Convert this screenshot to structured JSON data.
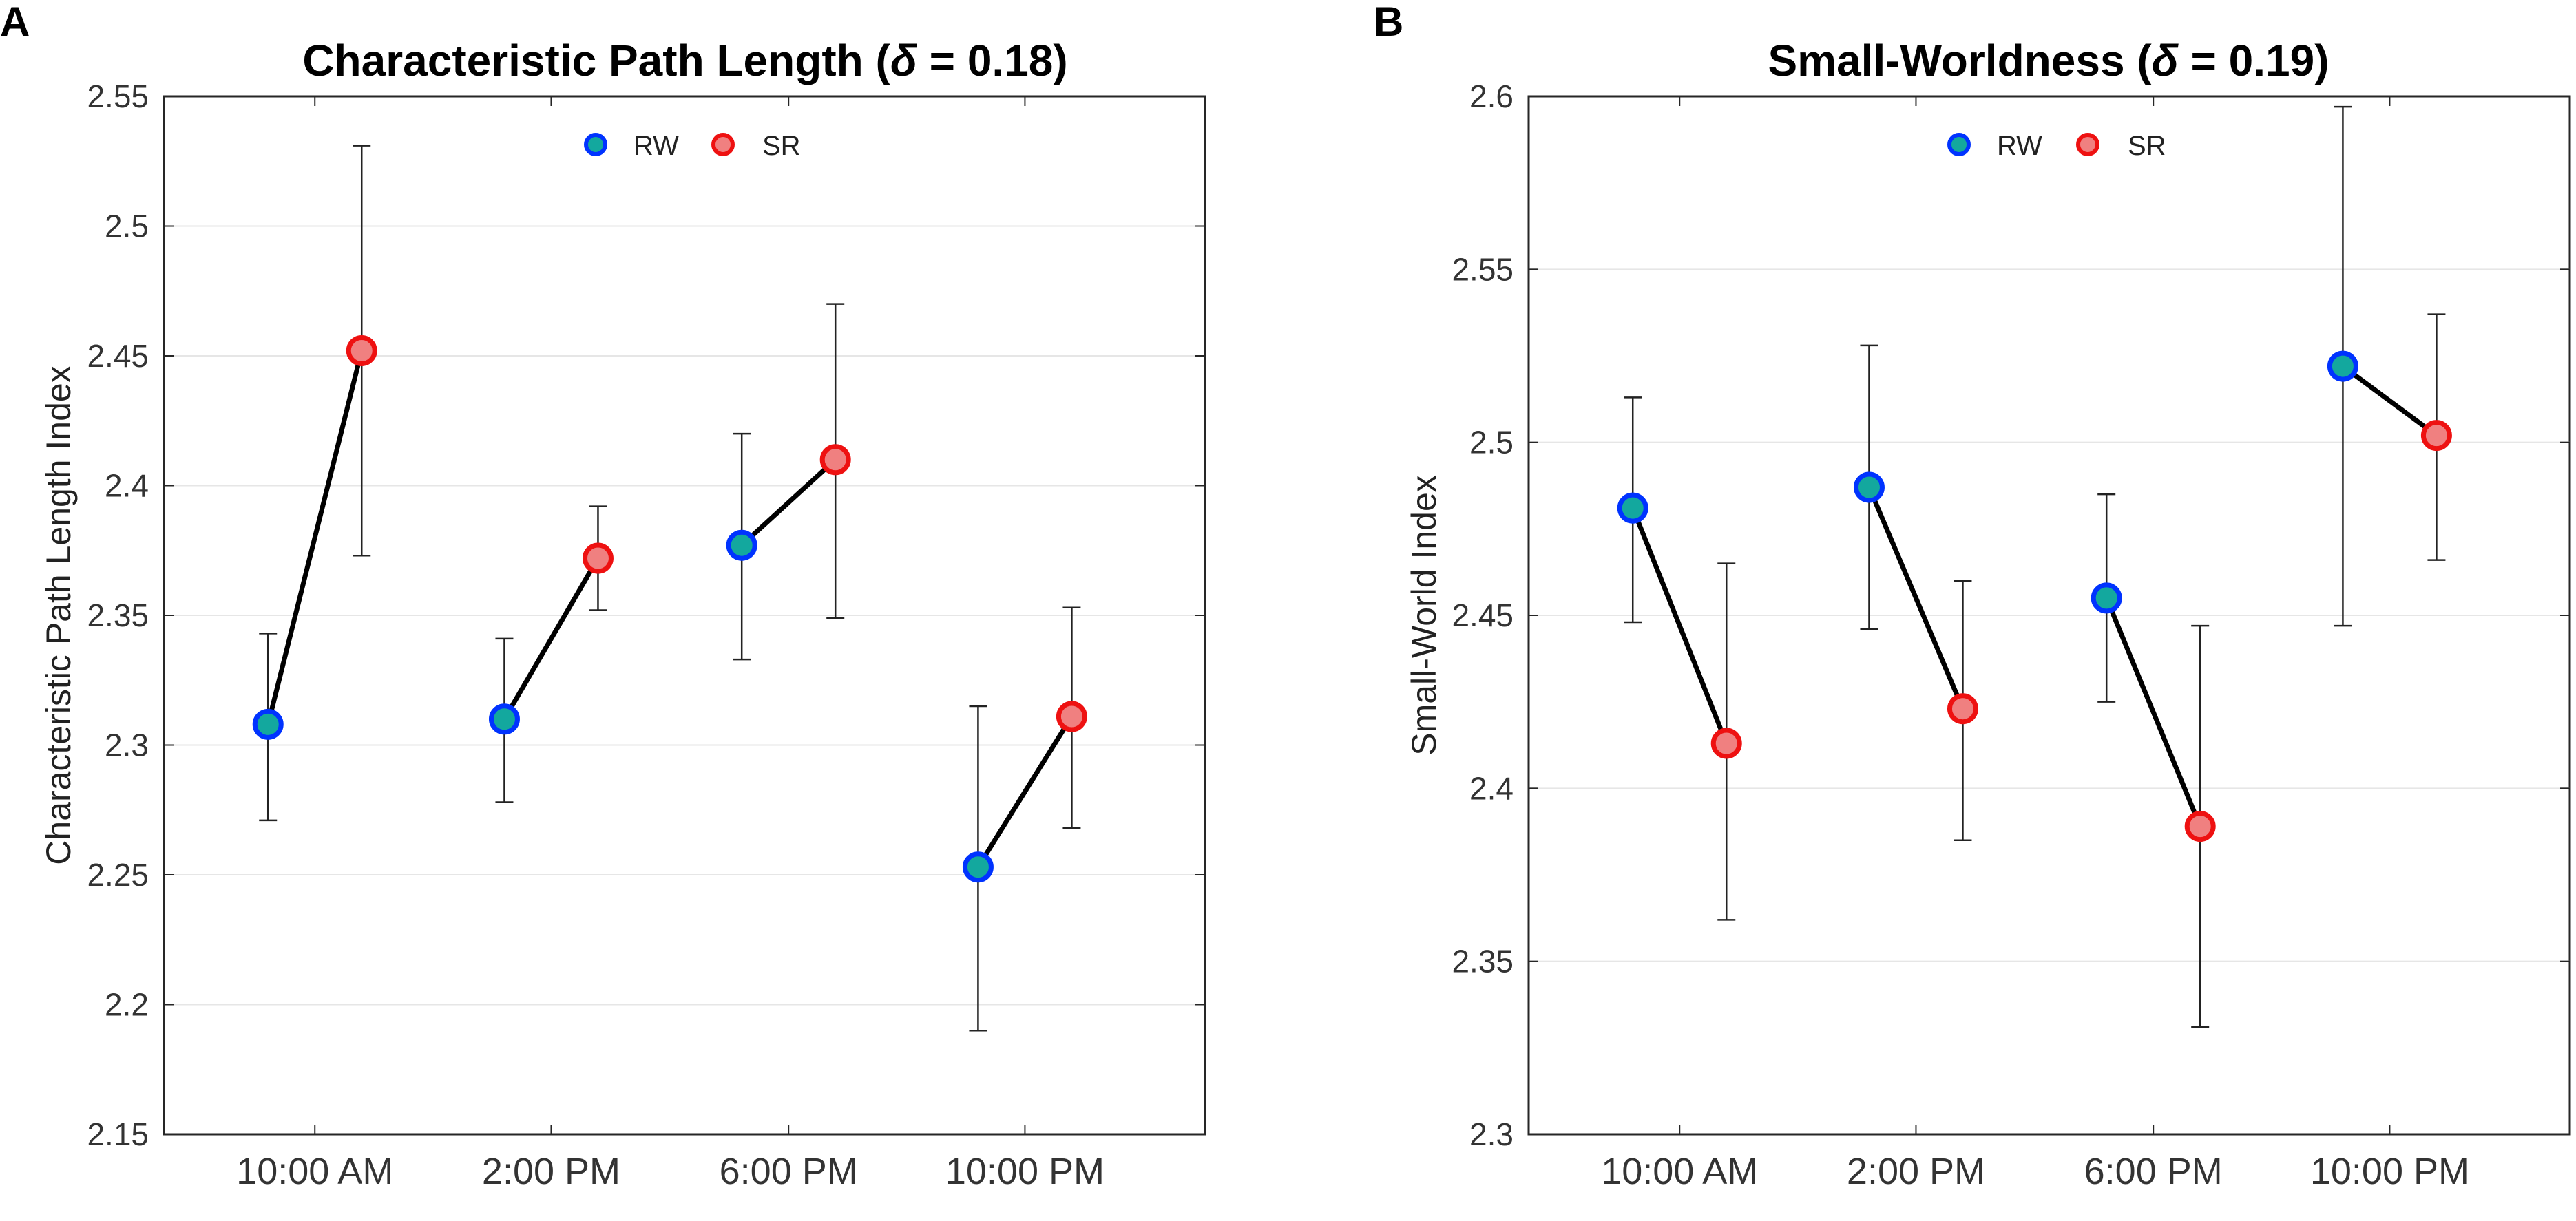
{
  "chart_data": [
    {
      "panel": "A",
      "type": "line",
      "title_main": "Characteristic Path Length (",
      "title_delta": "δ",
      "title_rest": " = 0.18)",
      "xlabel": "",
      "ylabel": "Characteristic Path Length Index",
      "ylim": [
        2.15,
        2.55
      ],
      "yticks": [
        "2.15",
        "2.2",
        "2.25",
        "2.3",
        "2.35",
        "2.4",
        "2.45",
        "2.5",
        "2.55"
      ],
      "categories": [
        "10:00 AM",
        "2:00 PM",
        "6:00 PM",
        "10:00 PM"
      ],
      "grid": "horizontal",
      "legend_position": "top-center",
      "series": [
        {
          "name": "RW",
          "color": "#0033ff",
          "fill": "#13a89e",
          "values": [
            2.308,
            2.31,
            2.377,
            2.253
          ],
          "err_low": [
            2.271,
            2.278,
            2.333,
            2.19
          ],
          "err_high": [
            2.343,
            2.341,
            2.42,
            2.315
          ]
        },
        {
          "name": "SR",
          "color": "#ee1111",
          "fill": "#f08080",
          "values": [
            2.452,
            2.372,
            2.41,
            2.311
          ],
          "err_low": [
            2.373,
            2.352,
            2.349,
            2.268
          ],
          "err_high": [
            2.531,
            2.392,
            2.47,
            2.353
          ]
        }
      ]
    },
    {
      "panel": "B",
      "type": "line",
      "title_main": "Small-Worldness (",
      "title_delta": "δ",
      "title_rest": " = 0.19)",
      "xlabel": "",
      "ylabel": "Small-World Index",
      "ylim": [
        2.3,
        2.6
      ],
      "yticks": [
        "2.3",
        "2.35",
        "2.4",
        "2.45",
        "2.5",
        "2.55",
        "2.6"
      ],
      "categories": [
        "10:00 AM",
        "2:00 PM",
        "6:00 PM",
        "10:00 PM"
      ],
      "grid": "horizontal",
      "legend_position": "top-center",
      "series": [
        {
          "name": "RW",
          "color": "#0033ff",
          "fill": "#13a89e",
          "values": [
            2.481,
            2.487,
            2.455,
            2.522
          ],
          "err_low": [
            2.448,
            2.446,
            2.425,
            2.447
          ],
          "err_high": [
            2.513,
            2.528,
            2.485,
            2.597
          ]
        },
        {
          "name": "SR",
          "color": "#ee1111",
          "fill": "#f08080",
          "values": [
            2.413,
            2.423,
            2.389,
            2.502
          ],
          "err_low": [
            2.362,
            2.385,
            2.331,
            2.466
          ],
          "err_high": [
            2.465,
            2.46,
            2.447,
            2.537
          ]
        }
      ]
    }
  ]
}
